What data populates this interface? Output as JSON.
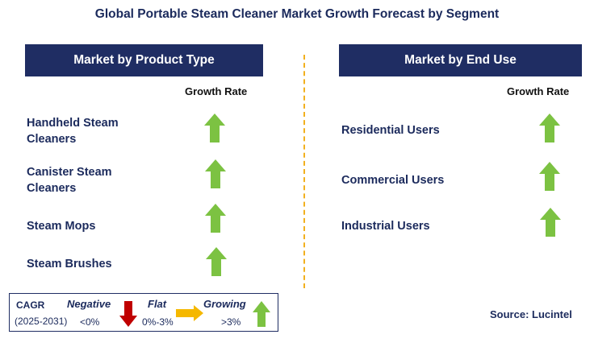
{
  "title": "Global Portable Steam Cleaner Market Growth Forecast by Segment",
  "left": {
    "header": "Market by Product Type",
    "growth_label": "Growth Rate",
    "items": [
      {
        "line1": "Handheld Steam",
        "line2": "Cleaners",
        "trend": "growing"
      },
      {
        "line1": "Canister Steam",
        "line2": "Cleaners",
        "trend": "growing"
      },
      {
        "line1": "Steam Mops",
        "line2": "",
        "trend": "growing"
      },
      {
        "line1": "Steam Brushes",
        "line2": "",
        "trend": "growing"
      }
    ]
  },
  "right": {
    "header": "Market by End Use",
    "growth_label": "Growth Rate",
    "items": [
      {
        "line1": "Residential Users",
        "trend": "growing"
      },
      {
        "line1": "Commercial Users",
        "trend": "growing"
      },
      {
        "line1": "Industrial Users",
        "trend": "growing"
      }
    ]
  },
  "legend": {
    "cagr_label": "CAGR",
    "period": "(2025-2031)",
    "negative_label": "Negative",
    "negative_range": "<0%",
    "flat_label": "Flat",
    "flat_range": "0%-3%",
    "growing_label": "Growing",
    "growing_range": ">3%"
  },
  "source": "Source: Lucintel",
  "colors": {
    "header_bg": "#1f2d63",
    "up_arrow": "#7cc242",
    "down_arrow": "#c00000",
    "flat_arrow": "#f5b800",
    "divider": "#f2b01e"
  }
}
